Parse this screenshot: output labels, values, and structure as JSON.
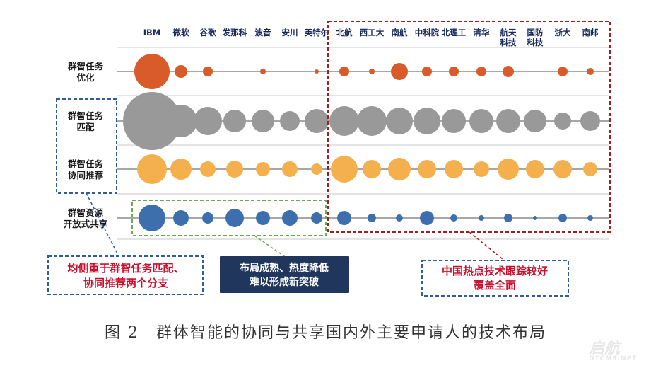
{
  "chart_data": {
    "type": "scatter",
    "categories": [
      "IBM",
      "微软",
      "谷歌",
      "发那科",
      "波音",
      "安川",
      "英特尔",
      "北航",
      "西工大",
      "南航",
      "中科院",
      "北理工",
      "清华",
      "航天科技",
      "国防科技",
      "浙大",
      "南邮"
    ],
    "category_labels": [
      "IBM",
      "微软",
      "谷歌",
      "发那科",
      "波音",
      "安川",
      "英特尔",
      "北航",
      "西工大",
      "南航",
      "中科院",
      "北理工",
      "清华",
      "航天\n科技",
      "国防\n科技",
      "浙大",
      "南邮"
    ],
    "rows": [
      "群智任务\n优化",
      "群智任务\n匹配",
      "群智任务\n协同推荐",
      "群智资源\n开放式共享"
    ],
    "series": [
      {
        "color": "#d95b2a",
        "values": [
          25,
          9,
          7,
          0,
          4,
          0,
          3,
          7,
          4,
          12,
          7,
          7,
          7,
          8,
          0,
          7,
          5
        ]
      },
      {
        "color": "#999999",
        "values": [
          41,
          23,
          20,
          16,
          16,
          14,
          17,
          21,
          21,
          19,
          19,
          17,
          17,
          17,
          16,
          12,
          14
        ]
      },
      {
        "color": "#f5b04e",
        "values": [
          21,
          15,
          11,
          12,
          10,
          11,
          8,
          19,
          13,
          16,
          13,
          13,
          11,
          15,
          13,
          13,
          10
        ]
      },
      {
        "color": "#3d6fae",
        "values": [
          19,
          11,
          8,
          13,
          10,
          11,
          8,
          10,
          6,
          5,
          10,
          5,
          4,
          6,
          3,
          6,
          4
        ]
      }
    ],
    "note": "marker size encodes patent volume (relative)"
  },
  "annotations": {
    "left_box": "均侧重于群智任务匹配、\n协同推荐两个分支",
    "mid_box": "布局成熟、热度降低\n难以形成新突破",
    "right_box": "中国热点技术跟踪较好\n覆盖全面"
  },
  "caption": "图 2　群体智能的协同与共享国内外主要申请人的技术布局",
  "watermark": "启航",
  "watermark_sub": "DTCMS.NET",
  "colors": {
    "red_text": "#c8102e",
    "blue_box": "#2f5d9a",
    "green_box": "#6ea855",
    "red_box": "#a02020",
    "navy_fill": "#20365d"
  }
}
